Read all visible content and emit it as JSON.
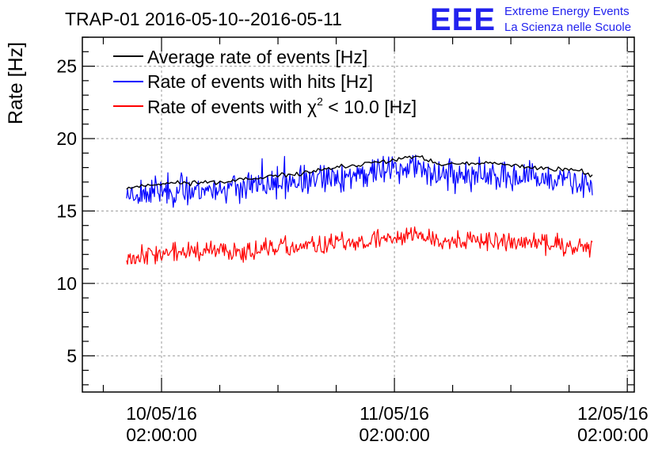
{
  "chart_data": {
    "type": "line",
    "title": "TRAP-01 2016-05-10--2016-05-11",
    "ylabel": "Rate [Hz]",
    "xlabel": "",
    "ylim": [
      2.5,
      27
    ],
    "xlim": [
      -0.34,
      2.03
    ],
    "y_ticks": [
      5,
      10,
      15,
      20,
      25
    ],
    "x_ticks": [
      {
        "value": 0,
        "line1": "10/05/16",
        "line2": "02:00:00"
      },
      {
        "value": 1,
        "line1": "11/05/16",
        "line2": "02:00:00"
      },
      {
        "value": 2,
        "line1": "12/05/16",
        "line2": "02:00:00"
      }
    ],
    "grid": true,
    "legend_position": "top-left",
    "brand": {
      "logo": "EEE",
      "line1": "Extreme Energy Events",
      "line2": "La Scienza nelle Scuole",
      "color": "#2222ee"
    },
    "series": [
      {
        "name": "Average rate of events [Hz]",
        "color": "#000000",
        "x_start": -0.15,
        "x_end": 1.85,
        "anchors": [
          [
            -0.15,
            16.6
          ],
          [
            0.0,
            16.9
          ],
          [
            0.2,
            17.0
          ],
          [
            0.4,
            17.2
          ],
          [
            0.6,
            17.6
          ],
          [
            0.8,
            18.1
          ],
          [
            0.95,
            18.4
          ],
          [
            1.1,
            18.8
          ],
          [
            1.15,
            18.4
          ],
          [
            1.2,
            18.2
          ],
          [
            1.4,
            18.3
          ],
          [
            1.6,
            18.0
          ],
          [
            1.8,
            17.8
          ],
          [
            1.85,
            17.4
          ]
        ],
        "noise_amp": 0.12,
        "n_points": 220,
        "seed": 11
      },
      {
        "name": "Rate of events with hits [Hz]",
        "color": "#0000ff",
        "x_start": -0.15,
        "x_end": 1.85,
        "anchors": [
          [
            -0.15,
            16.2
          ],
          [
            0.0,
            16.4
          ],
          [
            0.2,
            16.5
          ],
          [
            0.4,
            16.7
          ],
          [
            0.6,
            17.0
          ],
          [
            0.8,
            17.4
          ],
          [
            0.95,
            17.8
          ],
          [
            1.1,
            18.1
          ],
          [
            1.2,
            17.5
          ],
          [
            1.4,
            17.4
          ],
          [
            1.6,
            17.2
          ],
          [
            1.8,
            17.0
          ],
          [
            1.85,
            16.7
          ]
        ],
        "noise_amp": 0.75,
        "n_points": 520,
        "seed": 23
      },
      {
        "name": "Rate of events with χ² < 10.0 [Hz]",
        "legend_parts": [
          "Rate of events with ",
          "χ",
          "2",
          " < 10.0 [Hz]"
        ],
        "color": "#ff0000",
        "x_start": -0.15,
        "x_end": 1.85,
        "anchors": [
          [
            -0.15,
            11.9
          ],
          [
            0.0,
            12.1
          ],
          [
            0.2,
            12.2
          ],
          [
            0.4,
            12.3
          ],
          [
            0.6,
            12.5
          ],
          [
            0.8,
            12.8
          ],
          [
            0.95,
            13.1
          ],
          [
            1.1,
            13.4
          ],
          [
            1.2,
            13.0
          ],
          [
            1.4,
            12.9
          ],
          [
            1.6,
            12.8
          ],
          [
            1.8,
            12.6
          ],
          [
            1.85,
            12.5
          ]
        ],
        "noise_amp": 0.5,
        "n_points": 520,
        "seed": 37
      }
    ]
  }
}
